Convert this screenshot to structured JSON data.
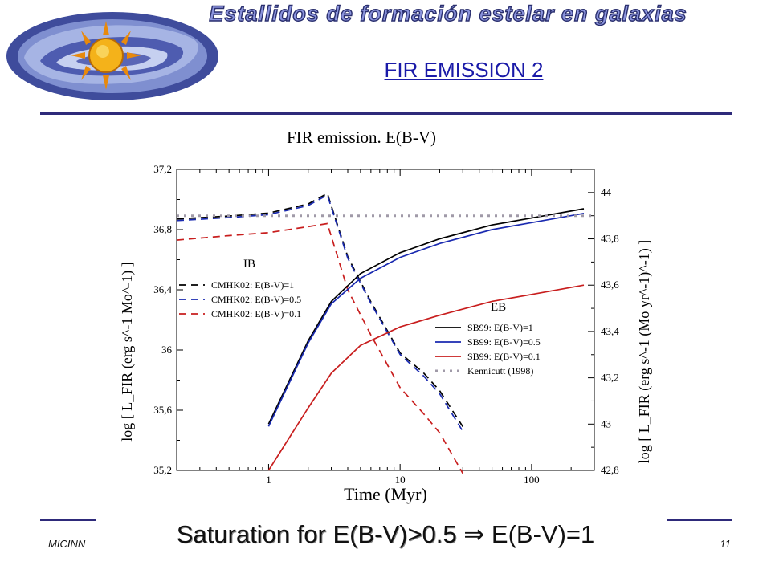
{
  "header": {
    "banner_text": "Estallidos de formación estelar en galaxias",
    "slide_title": "FIR EMISSION 2"
  },
  "footer": {
    "left": "MICINN",
    "page_number": "11",
    "statement_part1": "Saturation for E(B-V)>0.5",
    "arrow": "⇒",
    "statement_part2": "E(B-V)=1"
  },
  "colors": {
    "banner_fill": "#8a93dc",
    "title_blue": "#1a1aa8",
    "rule": "#2e2a7a"
  },
  "chart_data": {
    "type": "line",
    "title": "FIR emission. E(B-V)",
    "xlabel": "Time (Myr)",
    "ylabel": "log [ L_FIR (erg s^-1 Mo^-1) ]",
    "ylabel_right": "log [ L_FIR (erg s^-1 (Mo yr^-1)^-1) ]",
    "xscale": "log",
    "xlim": [
      0.2,
      300
    ],
    "ylim": [
      35.2,
      37.2
    ],
    "ylim_right": [
      42.8,
      44.1
    ],
    "x_ticks": [
      1,
      10,
      100
    ],
    "x_tick_labels": [
      "1",
      "10",
      "100"
    ],
    "y_ticks": [
      35.2,
      35.6,
      36,
      36.4,
      36.8,
      37.2
    ],
    "y_tick_labels": [
      "35,2",
      "35,6",
      "36",
      "36,4",
      "36,8",
      "37,2"
    ],
    "y_ticks_right": [
      42.8,
      43,
      43.2,
      43.4,
      43.6,
      43.8,
      44
    ],
    "y_tick_labels_right": [
      "42,8",
      "43",
      "43,2",
      "43,4",
      "43,6",
      "43,8",
      "44"
    ],
    "annotations": [
      "IB",
      "EB"
    ],
    "legend_ib": {
      "placement": "left-middle",
      "entries": [
        "CMHK02: E(B-V)=1",
        "CMHK02: E(B-V)=0.5",
        "CMHK02: E(B-V)=0.1"
      ]
    },
    "legend_eb": {
      "placement": "right-middle",
      "entries": [
        "SB99: E(B-V)=1",
        "SB99: E(B-V)=0.5",
        "SB99: E(B-V)=0.1",
        "Kennicutt (1998)"
      ]
    },
    "series": [
      {
        "name": "CMHK02: E(B-V)=1",
        "color": "#000000",
        "dash": "dashed",
        "x": [
          0.2,
          0.5,
          1,
          2,
          2.8,
          4,
          6,
          10,
          15,
          20,
          30
        ],
        "y": [
          36.87,
          36.89,
          36.91,
          36.97,
          37.04,
          36.62,
          36.32,
          35.98,
          35.85,
          35.73,
          35.49
        ]
      },
      {
        "name": "CMHK02: E(B-V)=0.5",
        "color": "#1a2ab0",
        "dash": "dashed",
        "x": [
          0.2,
          0.5,
          1,
          2,
          2.8,
          4,
          6,
          10,
          15,
          20,
          30
        ],
        "y": [
          36.86,
          36.88,
          36.9,
          36.96,
          37.03,
          36.61,
          36.31,
          35.97,
          35.83,
          35.71,
          35.46
        ]
      },
      {
        "name": "CMHK02: E(B-V)=0.1",
        "color": "#c81e1e",
        "dash": "dashed",
        "x": [
          0.2,
          0.5,
          1,
          2,
          2.8,
          4,
          6,
          10,
          15,
          20,
          30
        ],
        "y": [
          36.73,
          36.76,
          36.78,
          36.82,
          36.84,
          36.4,
          36.1,
          35.75,
          35.58,
          35.45,
          35.18
        ]
      },
      {
        "name": "SB99: E(B-V)=1",
        "color": "#000000",
        "dash": "solid",
        "x": [
          1,
          2,
          3,
          5,
          10,
          20,
          50,
          100,
          250
        ],
        "y": [
          43.0,
          43.36,
          43.53,
          43.65,
          43.74,
          43.8,
          43.86,
          43.89,
          43.93
        ]
      },
      {
        "name": "SB99: E(B-V)=0.5",
        "color": "#1a2ab0",
        "dash": "solid",
        "x": [
          1,
          2,
          3,
          5,
          10,
          20,
          50,
          100,
          250
        ],
        "y": [
          42.99,
          43.35,
          43.52,
          43.63,
          43.72,
          43.78,
          43.84,
          43.87,
          43.91
        ]
      },
      {
        "name": "SB99: E(B-V)=0.1",
        "color": "#c81e1e",
        "dash": "solid",
        "x": [
          1,
          2,
          3,
          5,
          10,
          20,
          50,
          100,
          250
        ],
        "y": [
          42.8,
          43.07,
          43.22,
          43.34,
          43.42,
          43.47,
          43.53,
          43.56,
          43.6
        ]
      },
      {
        "name": "Kennicutt (1998)",
        "color": "#a09aa8",
        "dash": "dotted",
        "x": [
          0.2,
          300
        ],
        "y": [
          43.9,
          43.9
        ]
      }
    ]
  }
}
